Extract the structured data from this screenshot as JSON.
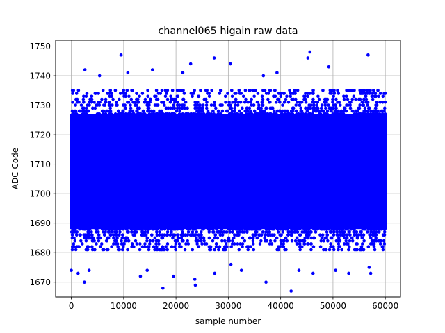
{
  "chart_data": {
    "type": "scatter",
    "title": "channel065 higain raw data",
    "xlabel": "sample number",
    "ylabel": "ADC Code",
    "xlim": [
      -3000,
      62900
    ],
    "ylim": [
      1665,
      1752
    ],
    "xticks": [
      0,
      10000,
      20000,
      30000,
      40000,
      50000,
      60000
    ],
    "xtick_labels": [
      "0",
      "10000",
      "20000",
      "30000",
      "40000",
      "50000",
      "60000"
    ],
    "yticks": [
      1670,
      1680,
      1690,
      1700,
      1710,
      1720,
      1730,
      1740,
      1750
    ],
    "ytick_labels": [
      "1670",
      "1680",
      "1690",
      "1700",
      "1710",
      "1720",
      "1730",
      "1740",
      "1750"
    ],
    "grid": true,
    "marker_color": "#0000ff",
    "sample_range": [
      0,
      59999
    ],
    "dense_band": [
      1688,
      1727
    ],
    "scattered_band": [
      1681,
      1735
    ],
    "outliers": [
      {
        "x": 0,
        "y": 1674
      },
      {
        "x": 1300,
        "y": 1673
      },
      {
        "x": 2500,
        "y": 1670
      },
      {
        "x": 2600,
        "y": 1742
      },
      {
        "x": 3400,
        "y": 1674
      },
      {
        "x": 5400,
        "y": 1740
      },
      {
        "x": 9500,
        "y": 1747
      },
      {
        "x": 10800,
        "y": 1741
      },
      {
        "x": 13200,
        "y": 1672
      },
      {
        "x": 14500,
        "y": 1674
      },
      {
        "x": 15500,
        "y": 1742
      },
      {
        "x": 17500,
        "y": 1668
      },
      {
        "x": 19500,
        "y": 1672
      },
      {
        "x": 21300,
        "y": 1741
      },
      {
        "x": 22800,
        "y": 1744
      },
      {
        "x": 23600,
        "y": 1671
      },
      {
        "x": 23700,
        "y": 1669
      },
      {
        "x": 27300,
        "y": 1746
      },
      {
        "x": 27400,
        "y": 1673
      },
      {
        "x": 30400,
        "y": 1744
      },
      {
        "x": 30500,
        "y": 1676
      },
      {
        "x": 32500,
        "y": 1674
      },
      {
        "x": 36700,
        "y": 1740
      },
      {
        "x": 37200,
        "y": 1670
      },
      {
        "x": 39300,
        "y": 1741
      },
      {
        "x": 42000,
        "y": 1667
      },
      {
        "x": 43500,
        "y": 1674
      },
      {
        "x": 45200,
        "y": 1746
      },
      {
        "x": 45600,
        "y": 1748
      },
      {
        "x": 46200,
        "y": 1673
      },
      {
        "x": 49200,
        "y": 1743
      },
      {
        "x": 50500,
        "y": 1674
      },
      {
        "x": 53000,
        "y": 1673
      },
      {
        "x": 56700,
        "y": 1747
      },
      {
        "x": 56900,
        "y": 1675
      },
      {
        "x": 57200,
        "y": 1673
      }
    ]
  }
}
